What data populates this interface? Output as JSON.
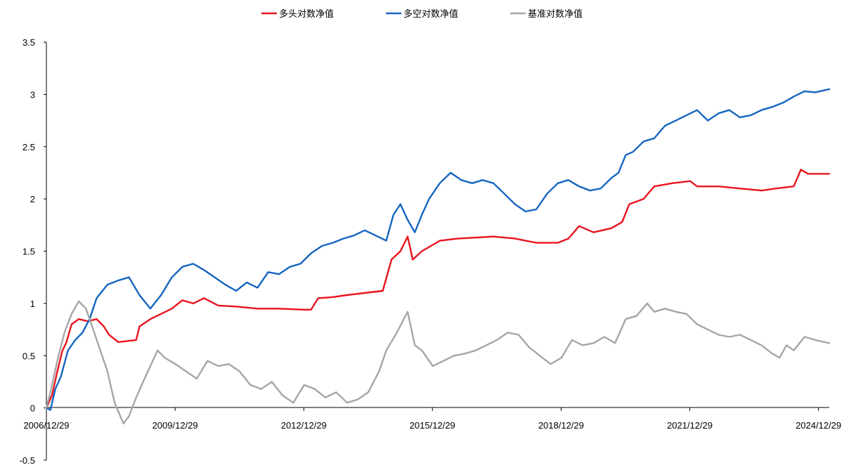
{
  "chart_data": {
    "type": "line",
    "title": "",
    "xlabel": "",
    "ylabel": "",
    "ylim": [
      -0.5,
      3.5
    ],
    "y_ticks": [
      3.5,
      3,
      2.5,
      2,
      1.5,
      1,
      0.5,
      0,
      -0.5
    ],
    "y_tick_labels": [
      "3.5",
      "3",
      "2.5",
      "2",
      "1.5",
      "1",
      "0.5",
      "0",
      "-0.5"
    ],
    "x_tick_labels": [
      "2006/12/29",
      "2009/12/29",
      "2012/12/29",
      "2015/12/29",
      "2018/12/29",
      "2021/12/29",
      "2024/12/29"
    ],
    "x_range": [
      "2006-12-29",
      "2025-03-31"
    ],
    "legend_position": "top-center",
    "grid": false,
    "series": [
      {
        "name": "多头对数净值",
        "color": "#e8141e",
        "points": [
          [
            "2006-12-29",
            0.0
          ],
          [
            "2007-02-15",
            0.12
          ],
          [
            "2007-04-01",
            0.35
          ],
          [
            "2007-05-15",
            0.55
          ],
          [
            "2007-06-15",
            0.62
          ],
          [
            "2007-08-01",
            0.8
          ],
          [
            "2007-10-01",
            0.85
          ],
          [
            "2007-12-15",
            0.83
          ],
          [
            "2008-03-01",
            0.85
          ],
          [
            "2008-05-01",
            0.78
          ],
          [
            "2008-06-15",
            0.7
          ],
          [
            "2008-09-01",
            0.63
          ],
          [
            "2009-02-01",
            0.65
          ],
          [
            "2009-03-01",
            0.78
          ],
          [
            "2009-06-01",
            0.85
          ],
          [
            "2009-09-01",
            0.9
          ],
          [
            "2009-12-01",
            0.95
          ],
          [
            "2010-03-01",
            1.03
          ],
          [
            "2010-06-01",
            1.0
          ],
          [
            "2010-09-01",
            1.05
          ],
          [
            "2011-01-01",
            0.98
          ],
          [
            "2011-06-01",
            0.97
          ],
          [
            "2011-12-01",
            0.95
          ],
          [
            "2012-06-01",
            0.95
          ],
          [
            "2013-01-01",
            0.94
          ],
          [
            "2013-03-01",
            0.94
          ],
          [
            "2013-05-01",
            1.05
          ],
          [
            "2013-09-01",
            1.06
          ],
          [
            "2014-01-01",
            1.08
          ],
          [
            "2014-06-01",
            1.1
          ],
          [
            "2014-11-01",
            1.12
          ],
          [
            "2015-01-15",
            1.42
          ],
          [
            "2015-04-01",
            1.5
          ],
          [
            "2015-06-01",
            1.64
          ],
          [
            "2015-07-15",
            1.42
          ],
          [
            "2015-10-01",
            1.5
          ],
          [
            "2016-03-01",
            1.6
          ],
          [
            "2016-08-01",
            1.62
          ],
          [
            "2017-01-01",
            1.63
          ],
          [
            "2017-06-01",
            1.64
          ],
          [
            "2017-12-01",
            1.62
          ],
          [
            "2018-06-01",
            1.58
          ],
          [
            "2018-12-01",
            1.58
          ],
          [
            "2019-03-01",
            1.62
          ],
          [
            "2019-06-01",
            1.74
          ],
          [
            "2019-10-01",
            1.68
          ],
          [
            "2020-03-01",
            1.72
          ],
          [
            "2020-06-01",
            1.78
          ],
          [
            "2020-08-01",
            1.95
          ],
          [
            "2020-12-01",
            2.0
          ],
          [
            "2021-03-01",
            2.12
          ],
          [
            "2021-08-01",
            2.15
          ],
          [
            "2022-01-01",
            2.17
          ],
          [
            "2022-03-01",
            2.12
          ],
          [
            "2022-09-01",
            2.12
          ],
          [
            "2023-03-01",
            2.1
          ],
          [
            "2023-09-01",
            2.08
          ],
          [
            "2024-01-01",
            2.1
          ],
          [
            "2024-06-01",
            2.12
          ],
          [
            "2024-08-01",
            2.28
          ],
          [
            "2024-10-01",
            2.24
          ],
          [
            "2025-03-31",
            2.24
          ]
        ]
      },
      {
        "name": "多空对数净值",
        "color": "#1565c0",
        "points": [
          [
            "2006-12-29",
            0.0
          ],
          [
            "2007-02-01",
            -0.02
          ],
          [
            "2007-03-15",
            0.18
          ],
          [
            "2007-05-01",
            0.3
          ],
          [
            "2007-07-01",
            0.55
          ],
          [
            "2007-09-01",
            0.65
          ],
          [
            "2007-11-01",
            0.72
          ],
          [
            "2008-01-01",
            0.85
          ],
          [
            "2008-03-01",
            1.05
          ],
          [
            "2008-06-01",
            1.18
          ],
          [
            "2008-09-01",
            1.22
          ],
          [
            "2008-12-01",
            1.25
          ],
          [
            "2009-03-01",
            1.08
          ],
          [
            "2009-06-01",
            0.95
          ],
          [
            "2009-09-01",
            1.08
          ],
          [
            "2009-12-01",
            1.25
          ],
          [
            "2010-03-01",
            1.35
          ],
          [
            "2010-06-01",
            1.38
          ],
          [
            "2010-09-01",
            1.32
          ],
          [
            "2010-12-01",
            1.25
          ],
          [
            "2011-03-01",
            1.18
          ],
          [
            "2011-06-01",
            1.12
          ],
          [
            "2011-09-01",
            1.2
          ],
          [
            "2011-12-01",
            1.15
          ],
          [
            "2012-03-01",
            1.3
          ],
          [
            "2012-06-01",
            1.28
          ],
          [
            "2012-09-01",
            1.35
          ],
          [
            "2012-12-01",
            1.38
          ],
          [
            "2013-03-01",
            1.48
          ],
          [
            "2013-06-01",
            1.55
          ],
          [
            "2013-09-01",
            1.58
          ],
          [
            "2013-12-01",
            1.62
          ],
          [
            "2014-03-01",
            1.65
          ],
          [
            "2014-06-01",
            1.7
          ],
          [
            "2014-09-01",
            1.65
          ],
          [
            "2014-12-01",
            1.6
          ],
          [
            "2015-02-01",
            1.85
          ],
          [
            "2015-04-01",
            1.95
          ],
          [
            "2015-06-01",
            1.8
          ],
          [
            "2015-08-01",
            1.68
          ],
          [
            "2015-10-01",
            1.85
          ],
          [
            "2015-12-01",
            2.0
          ],
          [
            "2016-03-01",
            2.15
          ],
          [
            "2016-06-01",
            2.25
          ],
          [
            "2016-09-01",
            2.18
          ],
          [
            "2016-12-01",
            2.15
          ],
          [
            "2017-03-01",
            2.18
          ],
          [
            "2017-06-01",
            2.15
          ],
          [
            "2017-09-01",
            2.05
          ],
          [
            "2017-12-01",
            1.95
          ],
          [
            "2018-03-01",
            1.88
          ],
          [
            "2018-06-01",
            1.9
          ],
          [
            "2018-09-01",
            2.05
          ],
          [
            "2018-12-01",
            2.15
          ],
          [
            "2019-03-01",
            2.18
          ],
          [
            "2019-06-01",
            2.12
          ],
          [
            "2019-09-01",
            2.08
          ],
          [
            "2019-12-01",
            2.1
          ],
          [
            "2020-03-01",
            2.2
          ],
          [
            "2020-05-01",
            2.25
          ],
          [
            "2020-07-01",
            2.42
          ],
          [
            "2020-09-01",
            2.45
          ],
          [
            "2020-12-01",
            2.55
          ],
          [
            "2021-03-01",
            2.58
          ],
          [
            "2021-06-01",
            2.7
          ],
          [
            "2021-09-01",
            2.75
          ],
          [
            "2021-12-01",
            2.8
          ],
          [
            "2022-03-01",
            2.85
          ],
          [
            "2022-06-01",
            2.75
          ],
          [
            "2022-09-01",
            2.82
          ],
          [
            "2022-12-01",
            2.85
          ],
          [
            "2023-03-01",
            2.78
          ],
          [
            "2023-06-01",
            2.8
          ],
          [
            "2023-09-01",
            2.85
          ],
          [
            "2023-12-01",
            2.88
          ],
          [
            "2024-03-01",
            2.92
          ],
          [
            "2024-06-01",
            2.98
          ],
          [
            "2024-09-01",
            3.03
          ],
          [
            "2024-12-01",
            3.02
          ],
          [
            "2025-03-31",
            3.05
          ]
        ]
      },
      {
        "name": "基准对数净值",
        "color": "#a6a6a6",
        "points": [
          [
            "2006-12-29",
            0.0
          ],
          [
            "2007-02-01",
            0.15
          ],
          [
            "2007-04-01",
            0.45
          ],
          [
            "2007-06-01",
            0.72
          ],
          [
            "2007-08-01",
            0.9
          ],
          [
            "2007-10-01",
            1.02
          ],
          [
            "2007-12-01",
            0.95
          ],
          [
            "2008-02-01",
            0.75
          ],
          [
            "2008-04-01",
            0.55
          ],
          [
            "2008-06-01",
            0.35
          ],
          [
            "2008-08-01",
            0.05
          ],
          [
            "2008-10-15",
            -0.15
          ],
          [
            "2008-12-01",
            -0.08
          ],
          [
            "2009-02-01",
            0.1
          ],
          [
            "2009-04-01",
            0.25
          ],
          [
            "2009-06-01",
            0.4
          ],
          [
            "2009-08-01",
            0.55
          ],
          [
            "2009-10-01",
            0.48
          ],
          [
            "2010-01-01",
            0.42
          ],
          [
            "2010-04-01",
            0.35
          ],
          [
            "2010-07-01",
            0.28
          ],
          [
            "2010-10-01",
            0.45
          ],
          [
            "2011-01-01",
            0.4
          ],
          [
            "2011-04-01",
            0.42
          ],
          [
            "2011-07-01",
            0.35
          ],
          [
            "2011-10-01",
            0.22
          ],
          [
            "2012-01-01",
            0.18
          ],
          [
            "2012-04-01",
            0.25
          ],
          [
            "2012-07-01",
            0.12
          ],
          [
            "2012-10-01",
            0.05
          ],
          [
            "2013-01-01",
            0.22
          ],
          [
            "2013-04-01",
            0.18
          ],
          [
            "2013-07-01",
            0.1
          ],
          [
            "2013-10-01",
            0.15
          ],
          [
            "2014-01-01",
            0.05
          ],
          [
            "2014-04-01",
            0.08
          ],
          [
            "2014-07-01",
            0.15
          ],
          [
            "2014-10-01",
            0.35
          ],
          [
            "2014-12-01",
            0.55
          ],
          [
            "2015-03-01",
            0.72
          ],
          [
            "2015-06-01",
            0.92
          ],
          [
            "2015-08-01",
            0.6
          ],
          [
            "2015-10-01",
            0.55
          ],
          [
            "2016-01-01",
            0.4
          ],
          [
            "2016-04-01",
            0.45
          ],
          [
            "2016-07-01",
            0.5
          ],
          [
            "2016-10-01",
            0.52
          ],
          [
            "2017-01-01",
            0.55
          ],
          [
            "2017-04-01",
            0.6
          ],
          [
            "2017-07-01",
            0.65
          ],
          [
            "2017-10-01",
            0.72
          ],
          [
            "2018-01-01",
            0.7
          ],
          [
            "2018-04-01",
            0.58
          ],
          [
            "2018-07-01",
            0.5
          ],
          [
            "2018-10-01",
            0.42
          ],
          [
            "2019-01-01",
            0.48
          ],
          [
            "2019-04-01",
            0.65
          ],
          [
            "2019-07-01",
            0.6
          ],
          [
            "2019-10-01",
            0.62
          ],
          [
            "2020-01-01",
            0.68
          ],
          [
            "2020-04-01",
            0.62
          ],
          [
            "2020-07-01",
            0.85
          ],
          [
            "2020-10-01",
            0.88
          ],
          [
            "2021-01-01",
            1.0
          ],
          [
            "2021-03-01",
            0.92
          ],
          [
            "2021-06-01",
            0.95
          ],
          [
            "2021-09-01",
            0.92
          ],
          [
            "2021-12-01",
            0.9
          ],
          [
            "2022-03-01",
            0.8
          ],
          [
            "2022-06-01",
            0.75
          ],
          [
            "2022-09-01",
            0.7
          ],
          [
            "2022-12-01",
            0.68
          ],
          [
            "2023-03-01",
            0.7
          ],
          [
            "2023-06-01",
            0.65
          ],
          [
            "2023-09-01",
            0.6
          ],
          [
            "2023-12-01",
            0.52
          ],
          [
            "2024-02-01",
            0.48
          ],
          [
            "2024-04-01",
            0.6
          ],
          [
            "2024-06-01",
            0.55
          ],
          [
            "2024-09-01",
            0.68
          ],
          [
            "2024-12-01",
            0.65
          ],
          [
            "2025-03-31",
            0.62
          ]
        ]
      }
    ]
  }
}
